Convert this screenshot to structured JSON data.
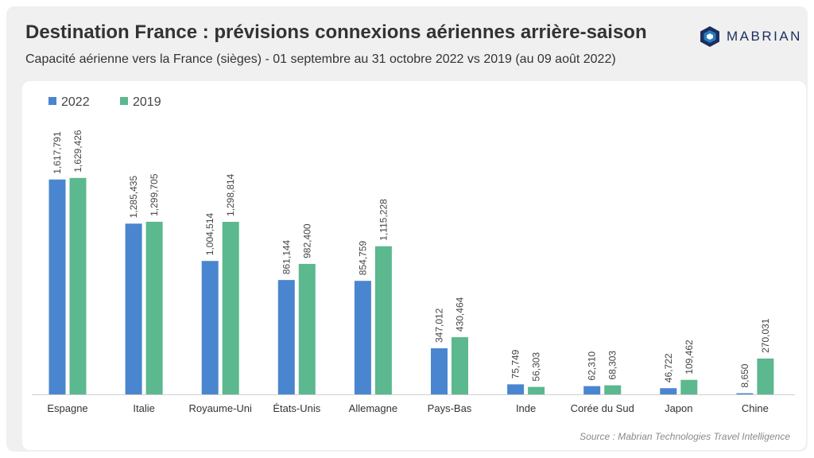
{
  "header": {
    "title": "Destination France : prévisions connexions aériennes arrière-saison",
    "subtitle": "Capacité aérienne vers la France (sièges)  - 01 septembre au 31 octobre 2022 vs 2019  (au 09 août 2022)"
  },
  "logo": {
    "text": "MABRIAN",
    "color": "#1b2f5e",
    "accent": "#2a7bbf"
  },
  "source": "Source : Mabrian Technologies Travel Intelligence",
  "chart_data": {
    "type": "bar",
    "title": "",
    "xlabel": "",
    "ylabel": "",
    "ylim": [
      0,
      1700000
    ],
    "grid": false,
    "legend_position": "top-left",
    "categories": [
      "Espagne",
      "Italie",
      "Royaume-Uni",
      "États-Unis",
      "Allemagne",
      "Pays-Bas",
      "Inde",
      "Corée du Sud",
      "Japon",
      "Chine"
    ],
    "series": [
      {
        "name": "2022",
        "color": "#4a86cf",
        "values": [
          1617791,
          1285435,
          1004514,
          861144,
          854759,
          347012,
          75749,
          62310,
          46722,
          8650
        ],
        "labels": [
          "1,617,791",
          "1,285,435",
          "1,004,514",
          "861,144",
          "854,759",
          "347,012",
          "75,749",
          "62,310",
          "46,722",
          "8,650"
        ]
      },
      {
        "name": "2019",
        "color": "#5cb88f",
        "values": [
          1629426,
          1299705,
          1298814,
          982400,
          1115228,
          430464,
          56303,
          68303,
          109462,
          270031
        ],
        "labels": [
          "1,629,426",
          "1,299,705",
          "1,298,814",
          "982,400",
          "1,115,228",
          "430,464",
          "56,303",
          "68,303",
          "109,462",
          "270,031"
        ]
      }
    ]
  }
}
